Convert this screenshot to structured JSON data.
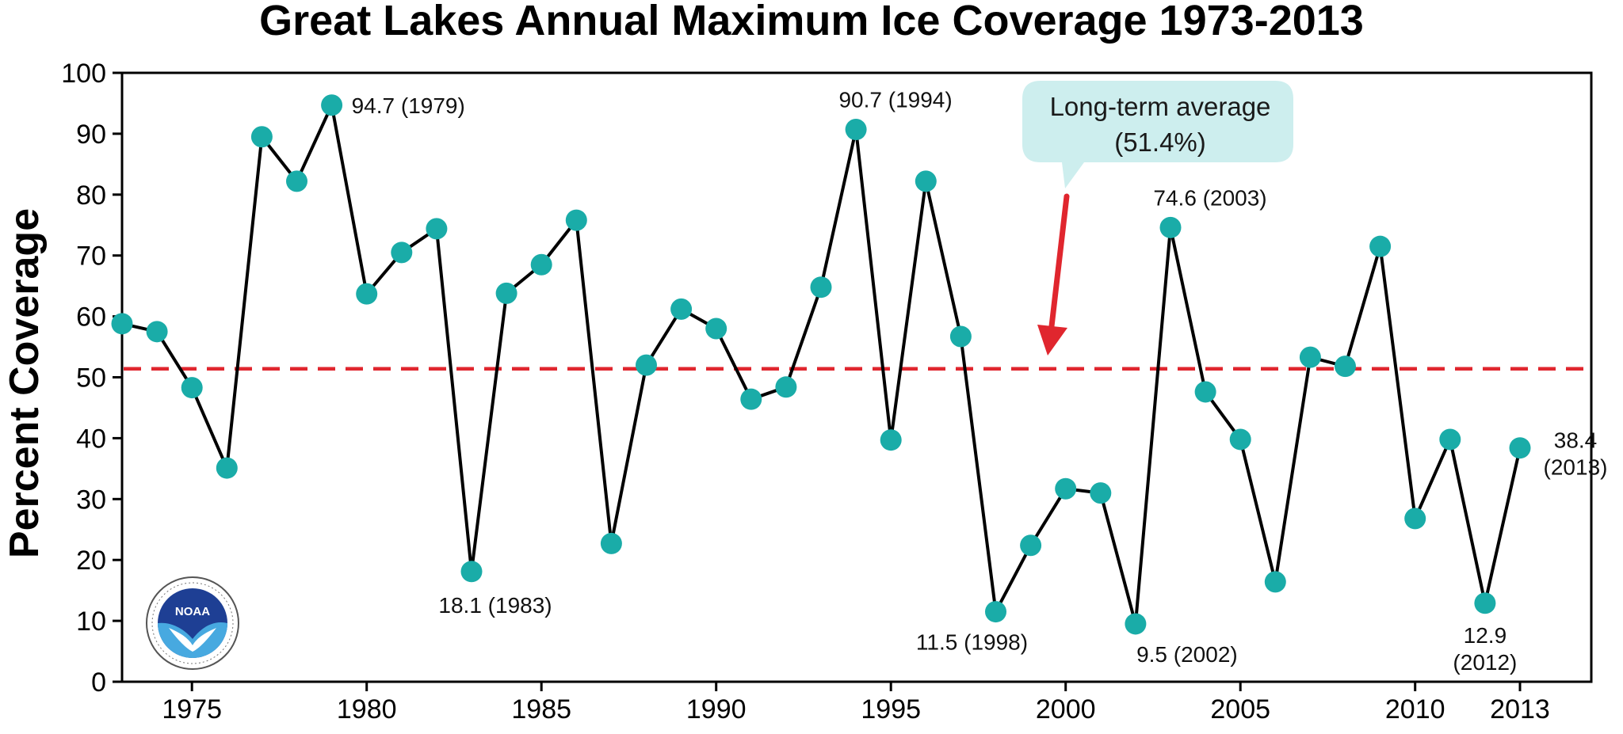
{
  "chart_data": {
    "type": "line",
    "title": "Great Lakes Annual Maximum Ice Coverage 1973-2013",
    "ylabel": "Percent Coverage",
    "xlabel": "",
    "xlim": [
      1973,
      2016
    ],
    "ylim": [
      0,
      100
    ],
    "x_ticks": [
      1975,
      1980,
      1985,
      1990,
      1995,
      2000,
      2005,
      2010,
      2013
    ],
    "y_ticks": [
      0,
      10,
      20,
      30,
      40,
      50,
      60,
      70,
      80,
      90,
      100
    ],
    "grid": false,
    "colors": {
      "line": "#000000",
      "marker": "#1aaca8",
      "average_line": "#e0262e",
      "callout_fill": "#cdeeee",
      "arrow": "#e0262e"
    },
    "series": [
      {
        "x": [
          1973,
          1974,
          1975,
          1976,
          1977,
          1978,
          1979,
          1980,
          1981,
          1982,
          1983,
          1984,
          1985,
          1986,
          1987,
          1988,
          1989,
          1990,
          1991,
          1992,
          1993,
          1994,
          1995,
          1996,
          1997,
          1998,
          1999,
          2000,
          2001,
          2002,
          2003,
          2004,
          2005,
          2006,
          2007,
          2008,
          2009,
          2010,
          2011,
          2012,
          2013
        ],
        "values": [
          58.8,
          57.5,
          48.3,
          35.1,
          89.5,
          82.2,
          94.7,
          63.7,
          70.5,
          74.4,
          18.1,
          63.8,
          68.5,
          75.8,
          22.7,
          52.0,
          61.2,
          58.0,
          46.4,
          48.4,
          64.8,
          90.7,
          39.7,
          82.2,
          56.7,
          11.5,
          22.4,
          31.7,
          31.0,
          9.5,
          74.6,
          47.6,
          39.8,
          16.4,
          53.3,
          51.8,
          71.5,
          26.8,
          39.8,
          12.9,
          38.4
        ]
      }
    ],
    "average": {
      "value": 51.4,
      "label_line1": "Long-term average",
      "label_line2": "(51.4%)"
    },
    "annotations": [
      {
        "x": 1979,
        "y": 94.7,
        "lines": [
          "94.7 (1979)"
        ]
      },
      {
        "x": 1983,
        "y": 18.1,
        "lines": [
          "18.1 (1983)"
        ]
      },
      {
        "x": 1994,
        "y": 90.7,
        "lines": [
          "90.7 (1994)"
        ]
      },
      {
        "x": 1998,
        "y": 11.5,
        "lines": [
          "11.5 (1998)"
        ]
      },
      {
        "x": 2002,
        "y": 9.5,
        "lines": [
          "9.5 (2002)"
        ]
      },
      {
        "x": 2003,
        "y": 74.6,
        "lines": [
          "74.6 (2003)"
        ]
      },
      {
        "x": 2012,
        "y": 12.9,
        "lines": [
          "12.9",
          "(2012)"
        ]
      },
      {
        "x": 2013,
        "y": 38.4,
        "lines": [
          "38.4",
          "(2013)"
        ]
      }
    ],
    "logo": {
      "icon": "noaa-logo-icon",
      "text": "NOAA"
    }
  }
}
